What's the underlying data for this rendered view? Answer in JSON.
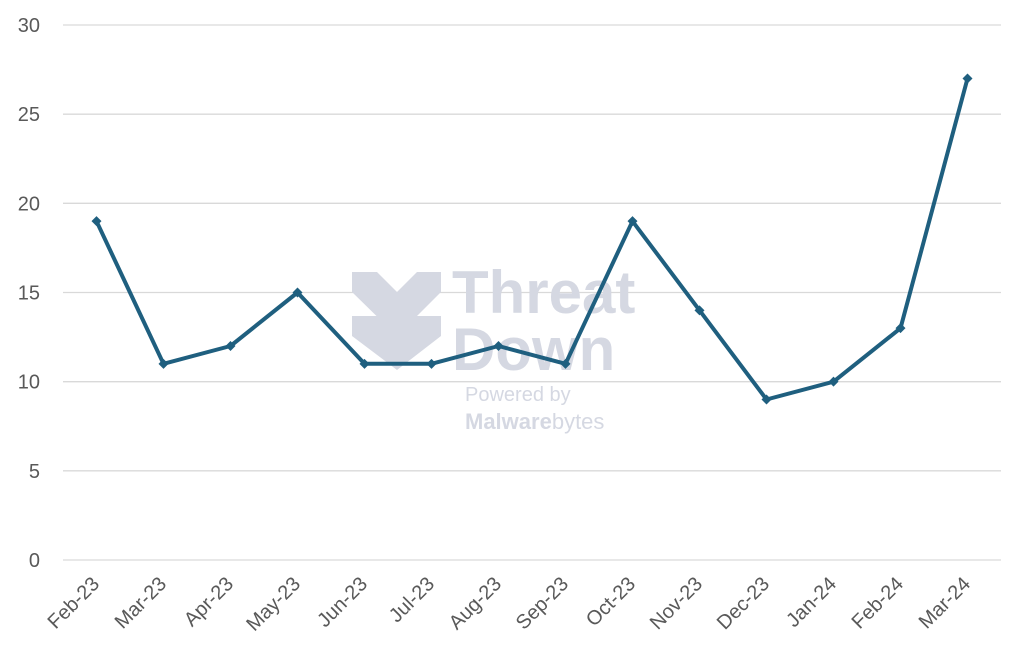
{
  "chart_data": {
    "type": "line",
    "categories": [
      "Feb-23",
      "Mar-23",
      "Apr-23",
      "May-23",
      "Jun-23",
      "Jul-23",
      "Aug-23",
      "Sep-23",
      "Oct-23",
      "Nov-23",
      "Dec-23",
      "Jan-24",
      "Feb-24",
      "Mar-24"
    ],
    "series": [
      {
        "values": [
          19,
          11,
          12,
          15,
          11,
          11,
          12,
          11,
          19,
          14,
          9,
          10,
          13,
          27
        ]
      }
    ],
    "yticks": [
      0,
      5,
      10,
      15,
      20,
      25,
      30
    ],
    "ylim": [
      0,
      30
    ],
    "grid": true,
    "color": "#1f5f7f"
  },
  "watermark": {
    "line1": "Threat",
    "line2": "Down",
    "line3": "Powered by",
    "brand_bold": "Malware",
    "brand_rest": "bytes"
  }
}
